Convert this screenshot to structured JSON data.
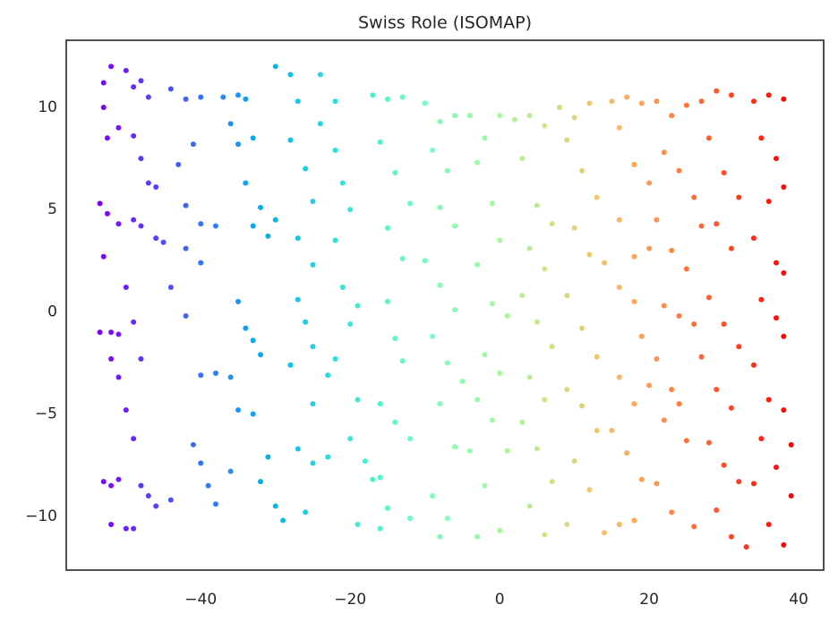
{
  "chart_data": {
    "type": "scatter",
    "title": "Swiss Role (ISOMAP)",
    "colormap": "rainbow",
    "x": [
      -53,
      -52,
      -53,
      -52.5,
      -51,
      -53.5,
      -52.5,
      -51,
      -53,
      -53.5,
      -52,
      -51,
      -52,
      -51,
      -53,
      -52,
      -51,
      -52,
      -50,
      -49,
      -50,
      -49,
      -48,
      -47,
      -49,
      -48,
      -47,
      -46,
      -49,
      -48,
      -46,
      -45,
      -50,
      -49,
      -48,
      -50,
      -49,
      -48,
      -47,
      -46,
      -44,
      -44,
      -42,
      -40,
      -41,
      -43,
      -42,
      -40,
      -38,
      -42,
      -40,
      -44,
      -42,
      -40,
      -38,
      -41,
      -40,
      -39,
      -38,
      -36,
      -37,
      -35,
      -34,
      -36,
      -35,
      -33,
      -34,
      -33,
      -31,
      -30,
      -32,
      -35,
      -34,
      -33,
      -32,
      -36,
      -35,
      -33,
      -31,
      -32,
      -30,
      -29,
      -30,
      -28,
      -27,
      -28,
      -26,
      -25,
      -27,
      -25,
      -27,
      -26,
      -25,
      -28,
      -25,
      -27,
      -25,
      -23,
      -26,
      -24,
      -22,
      -24,
      -22,
      -21,
      -20,
      -22,
      -21,
      -19,
      -20,
      -22,
      -23,
      -19,
      -20,
      -18,
      -17,
      -19,
      -17,
      -15,
      -13,
      -16,
      -14,
      -12,
      -15,
      -13,
      -15,
      -14,
      -13,
      -16,
      -14,
      -12,
      -16,
      -15,
      -16,
      -12,
      -10,
      -8,
      -6,
      -9,
      -7,
      -8,
      -6,
      -10,
      -8,
      -6,
      -9,
      -7,
      -5,
      -8,
      -6,
      -4,
      -9,
      -7,
      -8,
      -4,
      -2,
      0,
      -3,
      -1,
      0,
      -3,
      -1,
      1,
      -2,
      0,
      -3,
      -1,
      1,
      -2,
      0,
      -3,
      2,
      4,
      6,
      3,
      5,
      7,
      4,
      6,
      3,
      5,
      7,
      4,
      6,
      3,
      5,
      7,
      4,
      6,
      8,
      10,
      12,
      9,
      11,
      13,
      10,
      12,
      14,
      9,
      11,
      13,
      9,
      11,
      13,
      10,
      12,
      14,
      9,
      15,
      17,
      19,
      16,
      18,
      20,
      16,
      18,
      20,
      16,
      18,
      19,
      16,
      18,
      20,
      15,
      17,
      19,
      16,
      18,
      21,
      23,
      25,
      22,
      24,
      26,
      21,
      23,
      25,
      22,
      24,
      26,
      21,
      23,
      24,
      22,
      25,
      21,
      23,
      26,
      27,
      29,
      31,
      28,
      30,
      32,
      27,
      29,
      31,
      28,
      30,
      32,
      27,
      29,
      31,
      28,
      30,
      32,
      29,
      31,
      33,
      34,
      36,
      38,
      35,
      37,
      38,
      36,
      34,
      37,
      38,
      35,
      37,
      38,
      34,
      36,
      38,
      35,
      37,
      39,
      34,
      36,
      38,
      39
    ],
    "y": [
      11.2,
      12,
      10,
      8.5,
      9,
      5.3,
      4.8,
      4.3,
      2.7,
      -1,
      -1,
      -1.1,
      -2.3,
      -3.2,
      -8.3,
      -8.5,
      -8.2,
      -10.4,
      -10.6,
      -10.6,
      11.8,
      11,
      11.3,
      10.5,
      8.6,
      7.5,
      6.3,
      6.1,
      4.5,
      4.2,
      3.6,
      3.4,
      1.2,
      -0.5,
      -2.3,
      -4.8,
      -6.2,
      -8.5,
      -9,
      -9.5,
      -9.2,
      10.9,
      10.4,
      10.5,
      8.2,
      7.2,
      5.2,
      4.3,
      4.2,
      3.1,
      2.4,
      1.2,
      -0.2,
      -3.1,
      -3,
      -6.5,
      -7.4,
      -8.5,
      -9.4,
      -7.8,
      10.5,
      10.6,
      10.4,
      9.2,
      8.2,
      8.5,
      6.3,
      4.2,
      3.7,
      4.5,
      5.1,
      0.5,
      -0.8,
      -1.4,
      -2.1,
      -3.2,
      -4.8,
      -5,
      -7.1,
      -8.3,
      -9.5,
      -10.2,
      12,
      11.6,
      10.3,
      8.4,
      7,
      5.4,
      3.6,
      2.3,
      0.6,
      -0.5,
      -1.7,
      -2.6,
      -4.5,
      -6.7,
      -7.4,
      -7.1,
      -9.8,
      11.6,
      10.3,
      9.2,
      7.9,
      6.3,
      5,
      3.5,
      1.2,
      0.3,
      -0.6,
      -2.3,
      -3.1,
      -4.3,
      -6.2,
      -7.3,
      -8.2,
      -10.4,
      10.6,
      10.4,
      10.5,
      8.3,
      6.8,
      5.3,
      4.1,
      2.6,
      0.5,
      -1.3,
      -2.4,
      -4.5,
      -5.4,
      -6.2,
      -8.1,
      -9.6,
      -10.6,
      -10.1,
      10.2,
      9.3,
      9.6,
      7.9,
      6.9,
      5.1,
      4.2,
      2.5,
      1.3,
      0.1,
      -1.2,
      -2.5,
      -3.4,
      -4.5,
      -6.6,
      -6.8,
      -9,
      -10.1,
      -11,
      9.6,
      8.5,
      9.6,
      7.3,
      5.3,
      3.5,
      2.3,
      0.4,
      -0.2,
      -2.1,
      -3,
      -4.3,
      -5.3,
      -6.8,
      -8.5,
      -10.7,
      -11,
      9.4,
      9.6,
      9.1,
      7.5,
      5.2,
      4.3,
      3.1,
      2.1,
      0.8,
      -0.5,
      -1.7,
      -3.2,
      -4.3,
      -5.4,
      -6.7,
      -8.3,
      -9.5,
      -10.9,
      10,
      9.5,
      10.2,
      8.4,
      6.9,
      5.6,
      4.1,
      2.8,
      2.4,
      0.8,
      -0.8,
      -2.2,
      -3.8,
      -4.6,
      -5.8,
      -7.3,
      -8.7,
      -10.8,
      -10.4,
      10.3,
      10.5,
      10.2,
      9,
      7.2,
      6.3,
      4.5,
      2.7,
      3.1,
      1.2,
      0.5,
      -1.2,
      -3.2,
      -4.5,
      -3.6,
      -5.8,
      -6.9,
      -8.2,
      -10.4,
      -10.2,
      10.3,
      9.6,
      10.1,
      7.8,
      6.9,
      5.6,
      4.5,
      3,
      2.1,
      0.3,
      -0.2,
      -0.6,
      -2.3,
      -3.8,
      -4.5,
      -5.3,
      -6.3,
      -8.4,
      -9.8,
      -10.5,
      10.3,
      10.8,
      10.6,
      8.5,
      6.8,
      5.6,
      4.2,
      4.3,
      3.1,
      0.7,
      -0.6,
      -1.7,
      -2.2,
      -3.8,
      -4.7,
      -6.4,
      -7.5,
      -8.3,
      -9.7,
      -11,
      -11.5,
      10.3,
      10.6,
      10.4,
      8.5,
      7.5,
      6.1,
      5.4,
      3.6,
      2.4,
      1.9,
      0.6,
      -0.3,
      -1.2,
      -2.6,
      -4.3,
      -4.8,
      -6.2,
      -7.6,
      -6.5,
      -8.4,
      -10.4,
      -11.4,
      -9
    ],
    "xlim": [
      -58,
      43.35
    ],
    "ylim": [
      -12.63,
      13.28
    ],
    "xticks": [
      {
        "value": -40,
        "label": "−40"
      },
      {
        "value": -20,
        "label": "−20"
      },
      0,
      20,
      40
    ],
    "yticks": [
      {
        "value": -10,
        "label": "−10"
      },
      {
        "value": -5,
        "label": "−5"
      },
      0,
      5,
      10
    ],
    "grid": false
  }
}
